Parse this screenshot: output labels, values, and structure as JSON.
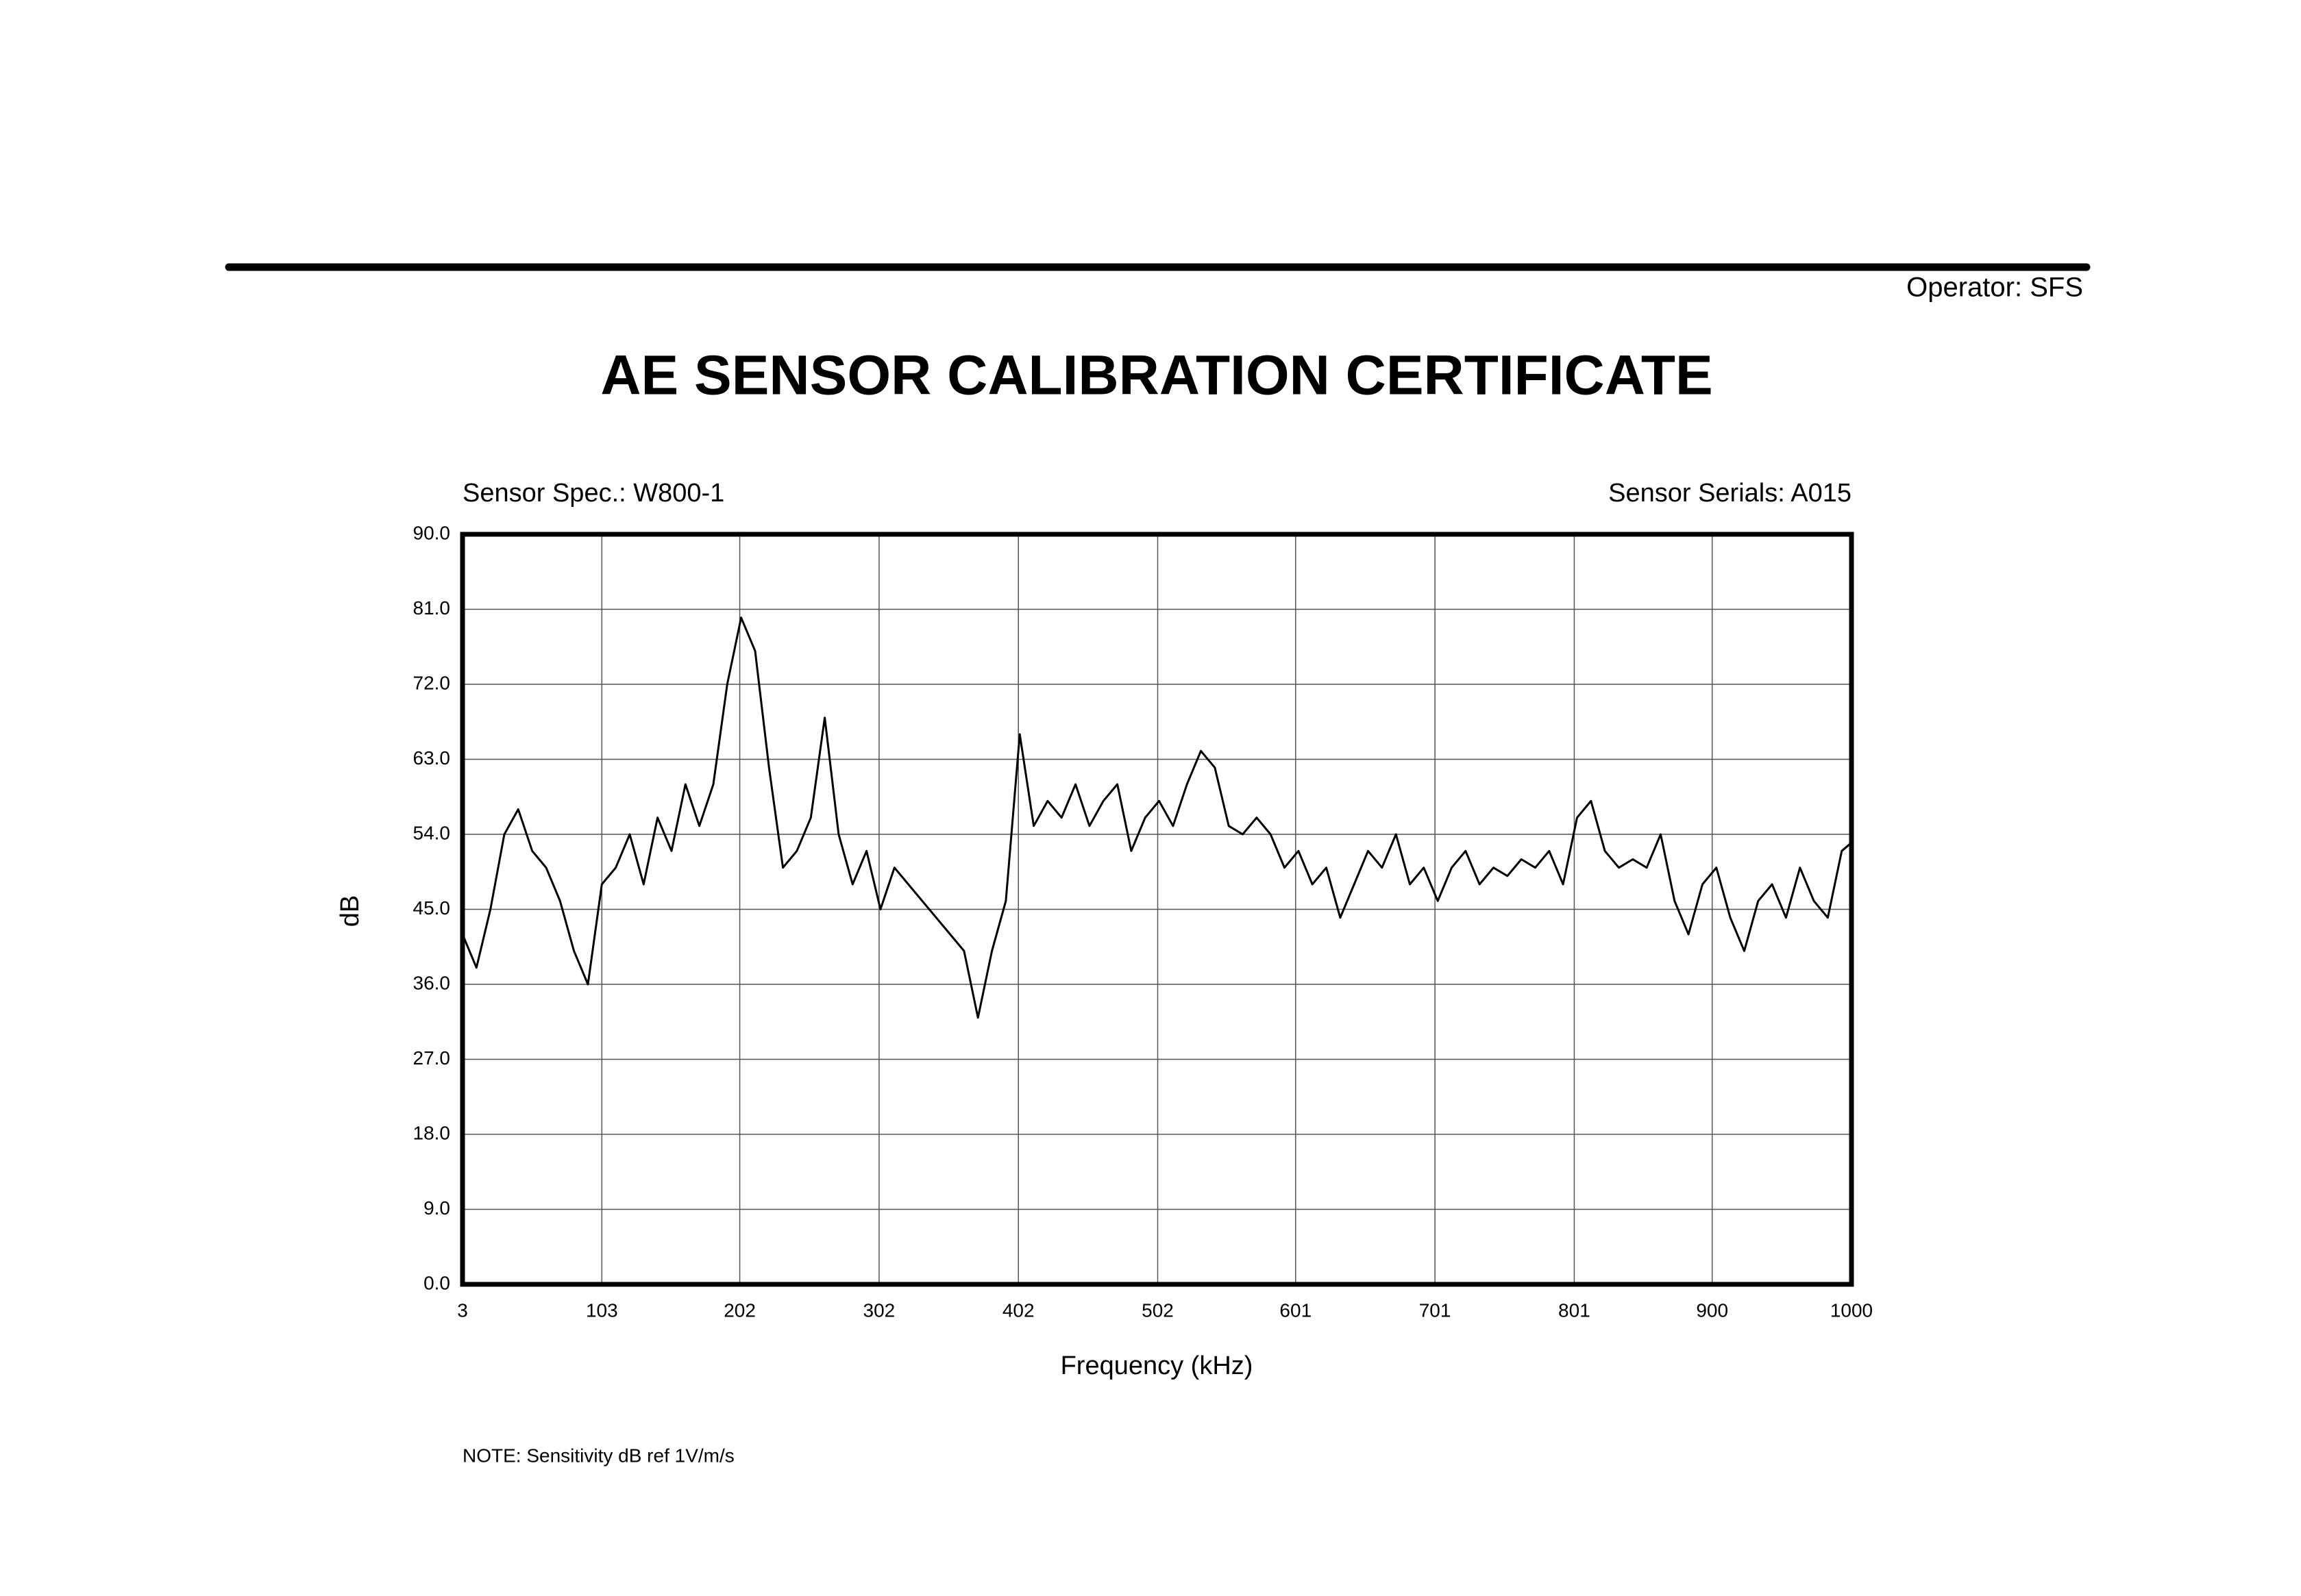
{
  "header": {
    "operator": "Operator: SFS"
  },
  "note": "NOTE:  Sensitivity dB ref 1V/m/s",
  "chart_data": {
    "type": "line",
    "title": "AE SENSOR CALIBRATION CERTIFICATE",
    "annotations": [
      "Sensor Spec.: W800-1",
      "Sensor Serials: A015"
    ],
    "x_label": "Frequency (kHz)",
    "y_label": "dB",
    "xlim": [
      3,
      1000
    ],
    "ylim": [
      0,
      90
    ],
    "xticks": [
      3,
      103,
      202,
      302,
      402,
      502,
      601,
      701,
      801,
      900,
      1000
    ],
    "yticks": [
      {
        "value": 0,
        "label": "0.0"
      },
      {
        "value": 9,
        "label": "9.0"
      },
      {
        "value": 18,
        "label": "18.0"
      },
      {
        "value": 27,
        "label": "27.0"
      },
      {
        "value": 36,
        "label": "36.0"
      },
      {
        "value": 45,
        "label": "45.0"
      },
      {
        "value": 54,
        "label": "54.0"
      },
      {
        "value": 63,
        "label": "63.0"
      },
      {
        "value": 72,
        "label": "72.0"
      },
      {
        "value": 81,
        "label": "81.0"
      },
      {
        "value": 90,
        "label": "90.0"
      }
    ],
    "grid": true,
    "x": [
      3,
      13,
      23,
      33,
      43,
      53,
      63,
      73,
      83,
      93,
      103,
      113,
      123,
      133,
      143,
      153,
      163,
      173,
      183,
      193,
      203,
      213,
      223,
      233,
      243,
      253,
      263,
      273,
      283,
      293,
      303,
      313,
      323,
      333,
      343,
      353,
      363,
      373,
      383,
      393,
      403,
      413,
      423,
      433,
      443,
      453,
      463,
      473,
      483,
      493,
      503,
      513,
      523,
      533,
      543,
      553,
      563,
      573,
      583,
      593,
      603,
      613,
      623,
      633,
      643,
      653,
      663,
      673,
      683,
      693,
      703,
      713,
      723,
      733,
      743,
      753,
      763,
      773,
      783,
      793,
      803,
      813,
      823,
      833,
      843,
      853,
      863,
      873,
      883,
      893,
      903,
      913,
      923,
      933,
      943,
      953,
      963,
      973,
      983,
      993,
      1000
    ],
    "series": [
      {
        "name": "Sensitivity",
        "color": "#000000",
        "values": [
          42,
          38,
          45,
          54,
          57,
          52,
          50,
          46,
          40,
          36,
          48,
          50,
          54,
          48,
          56,
          52,
          60,
          55,
          60,
          72,
          80,
          76,
          62,
          50,
          52,
          56,
          68,
          54,
          48,
          52,
          45,
          50,
          48,
          46,
          44,
          42,
          40,
          32,
          40,
          46,
          66,
          55,
          58,
          56,
          60,
          55,
          58,
          60,
          52,
          56,
          58,
          55,
          60,
          64,
          62,
          55,
          54,
          56,
          54,
          50,
          52,
          48,
          50,
          44,
          48,
          52,
          50,
          54,
          48,
          50,
          46,
          50,
          52,
          48,
          50,
          49,
          51,
          50,
          52,
          48,
          56,
          58,
          52,
          50,
          51,
          50,
          54,
          46,
          42,
          48,
          50,
          44,
          40,
          46,
          48,
          44,
          50,
          46,
          44,
          52,
          53
        ]
      }
    ]
  }
}
